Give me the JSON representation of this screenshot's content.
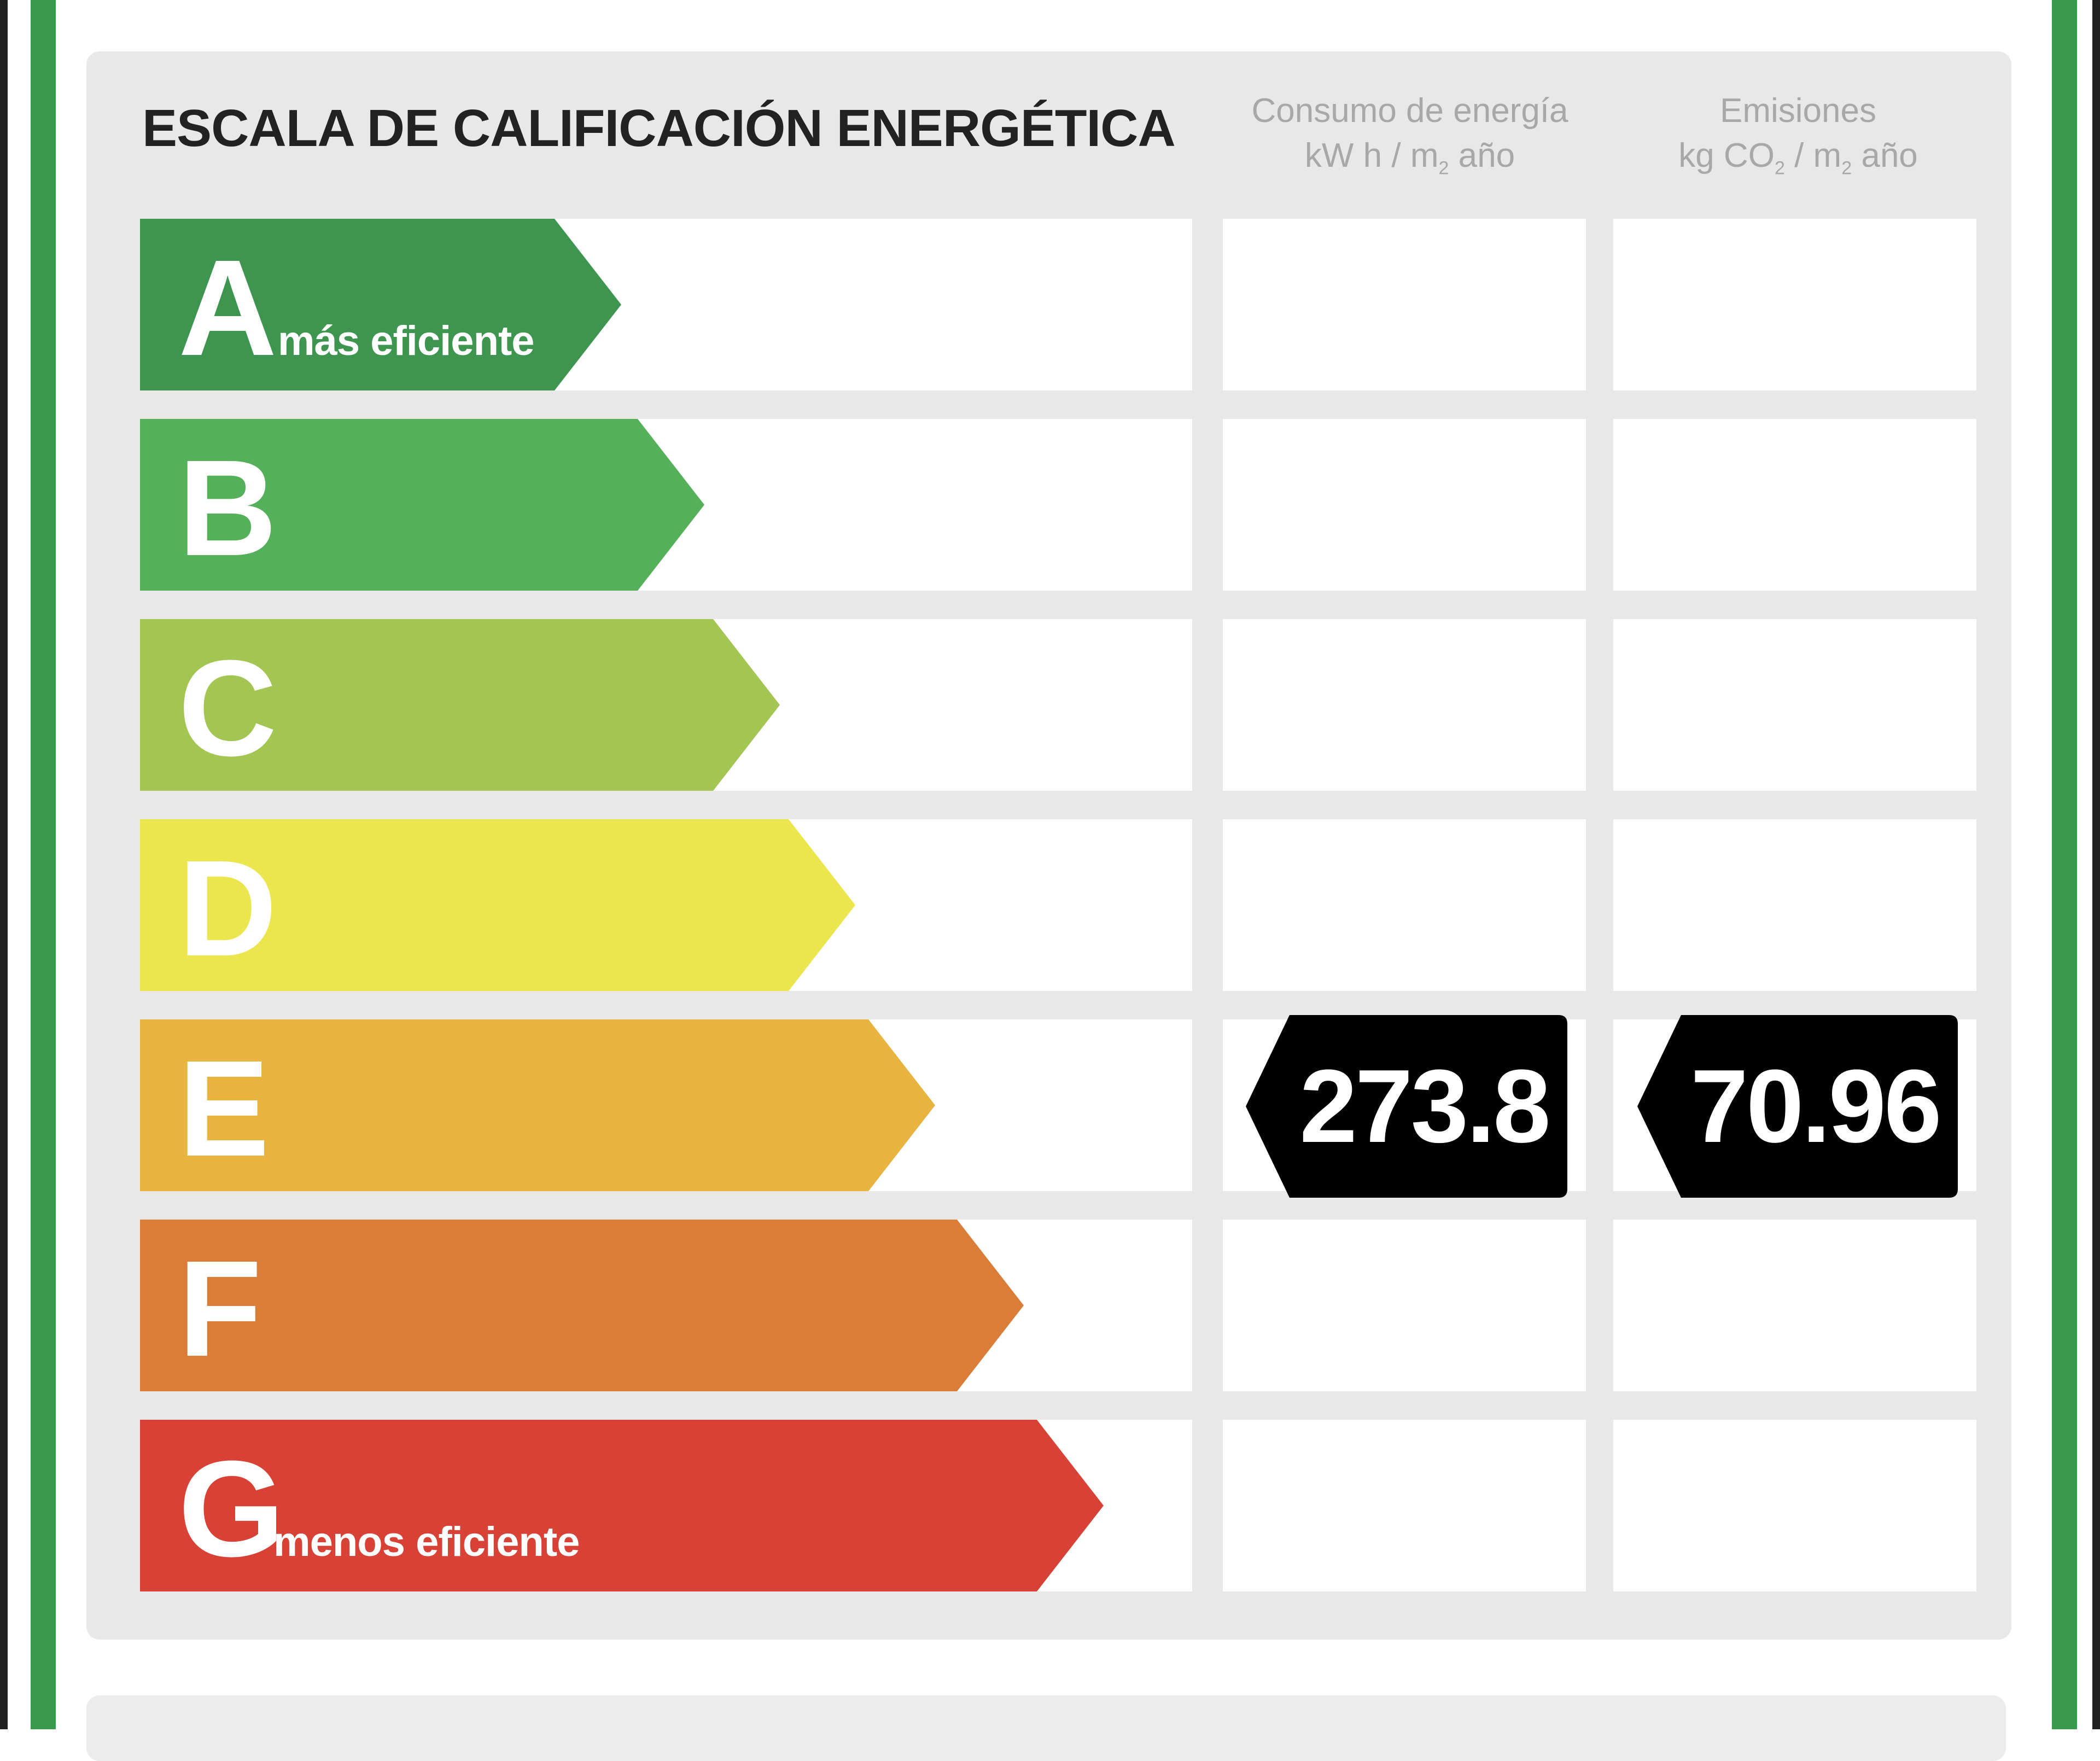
{
  "title": "ESCALA DE CALIFICACIÓN ENERGÉTICA",
  "columns": {
    "energy": {
      "line1": "Consumo de energía",
      "line2_pre": "kW h / m",
      "line2_sub": "2",
      "line2_post": " año"
    },
    "emissions": {
      "line1": "Emisiones",
      "line2_pre": "kg CO",
      "line2_sub": "2",
      "line2_mid": " / m",
      "line2_sub2": "2",
      "line2_post": " año"
    }
  },
  "ratings": [
    {
      "letter": "A",
      "sublabel": "más eficiente",
      "color": "#3d9550"
    },
    {
      "letter": "B",
      "sublabel": "",
      "color": "#55b05a"
    },
    {
      "letter": "C",
      "sublabel": "",
      "color": "#a3c552"
    },
    {
      "letter": "D",
      "sublabel": "",
      "color": "#ece64e"
    },
    {
      "letter": "E",
      "sublabel": "",
      "color": "#e8b33e"
    },
    {
      "letter": "F",
      "sublabel": "",
      "color": "#d97d38"
    },
    {
      "letter": "G",
      "sublabel": "menos eficiente",
      "color": "#d84236"
    }
  ],
  "current_rating": "E",
  "energy_value": "273.8",
  "emissions_value": "70.96",
  "badge_color": "#000000"
}
